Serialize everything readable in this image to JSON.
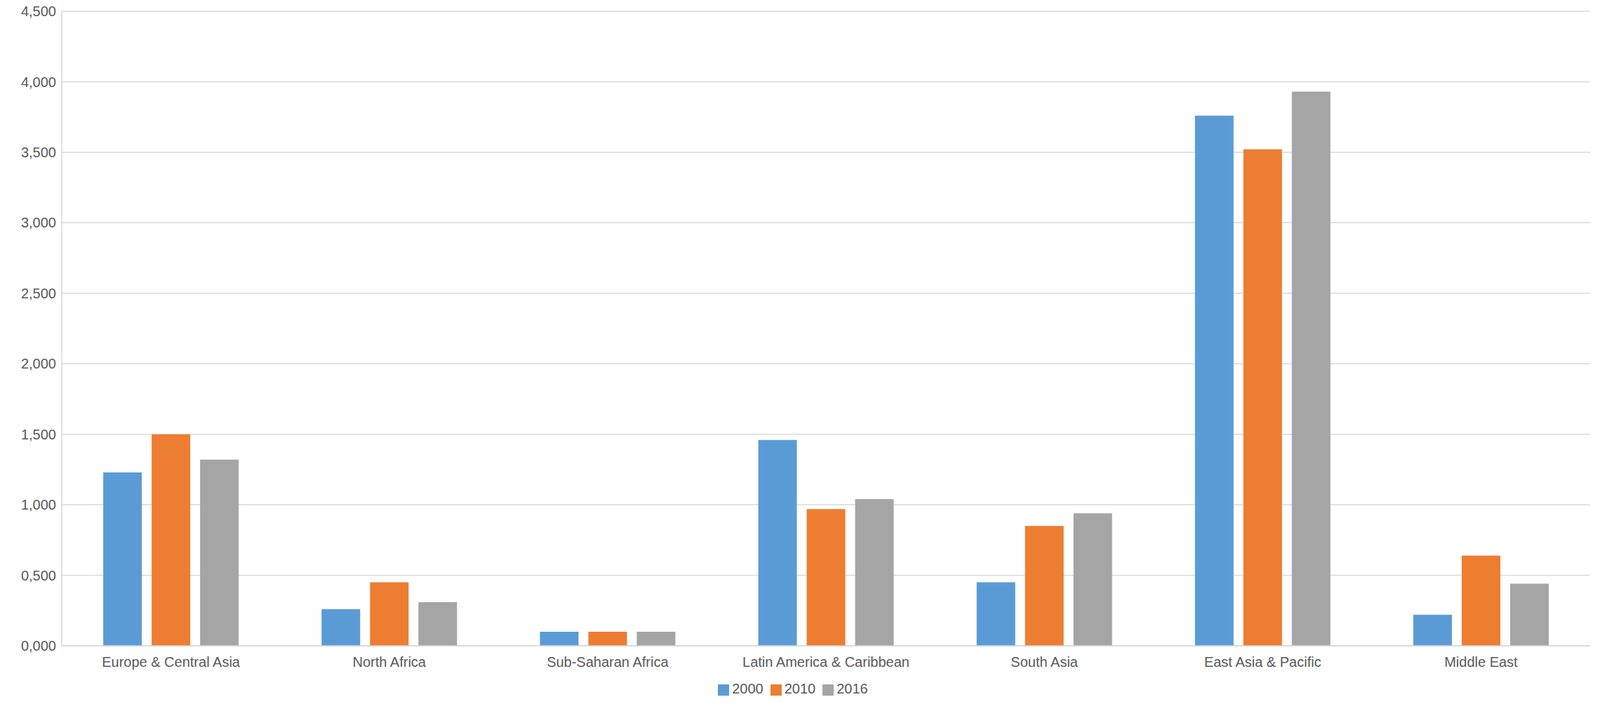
{
  "chart_data": {
    "type": "bar",
    "categories": [
      "Europe & Central Asia",
      "North Africa",
      "Sub-Saharan Africa",
      "Latin America & Caribbean",
      "South Asia",
      "East Asia & Pacific",
      "Middle East"
    ],
    "series": [
      {
        "name": "2000",
        "color": "#5b9bd5",
        "values": [
          1.23,
          0.26,
          0.1,
          1.46,
          0.45,
          3.76,
          0.22
        ]
      },
      {
        "name": "2010",
        "color": "#ed7d31",
        "values": [
          1.5,
          0.45,
          0.1,
          0.97,
          0.85,
          3.52,
          0.64
        ]
      },
      {
        "name": "2016",
        "color": "#a5a5a5",
        "values": [
          1.32,
          0.31,
          0.1,
          1.04,
          0.94,
          3.93,
          0.44
        ]
      }
    ],
    "ylim": [
      0,
      4.5
    ],
    "yticks": [
      {
        "value": 0,
        "label": "0,000"
      },
      {
        "value": 0.5,
        "label": "0,500"
      },
      {
        "value": 1,
        "label": "1,000"
      },
      {
        "value": 1.5,
        "label": "1,500"
      },
      {
        "value": 2,
        "label": "2,000"
      },
      {
        "value": 2.5,
        "label": "2,500"
      },
      {
        "value": 3,
        "label": "3,000"
      },
      {
        "value": 3.5,
        "label": "3,500"
      },
      {
        "value": 4,
        "label": "4,000"
      },
      {
        "value": 4.5,
        "label": "4,500"
      }
    ],
    "grid": true,
    "legend": "bottom"
  }
}
